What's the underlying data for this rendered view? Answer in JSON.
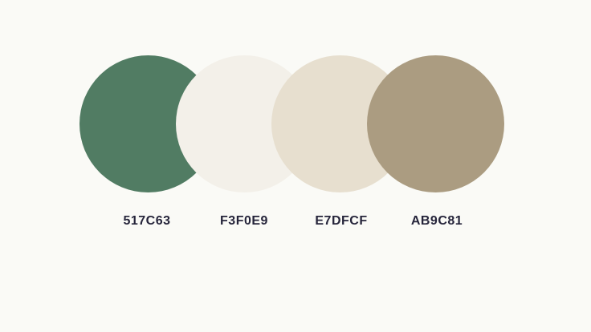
{
  "background_color": "#FAFAF6",
  "label_color": "#25243A",
  "swatches": [
    {
      "hex": "517C63",
      "color": "#517C63"
    },
    {
      "hex": "F3F0E9",
      "color": "#F3F0E9"
    },
    {
      "hex": "E7DFCF",
      "color": "#E7DFCF"
    },
    {
      "hex": "AB9C81",
      "color": "#AB9C81"
    }
  ]
}
